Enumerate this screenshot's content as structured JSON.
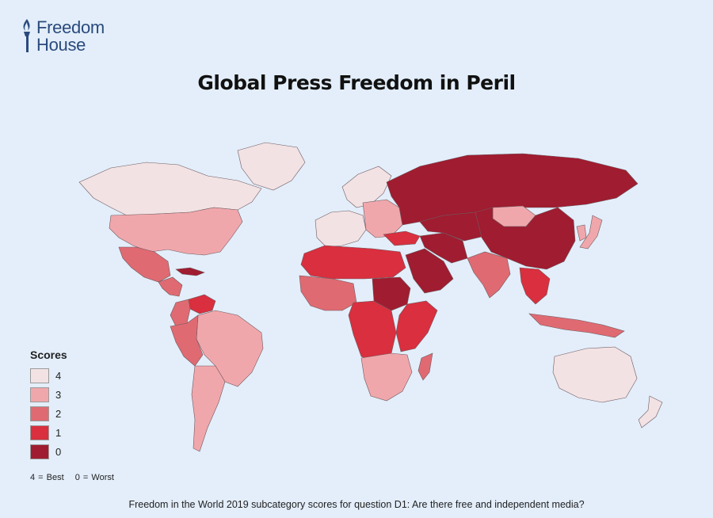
{
  "logo": {
    "line1": "Freedom",
    "line2": "House"
  },
  "title": "Global Press Freedom in Peril",
  "legend": {
    "title": "Scores",
    "items": [
      {
        "label": "4",
        "color": "#f2e2e4"
      },
      {
        "label": "3",
        "color": "#f0a7ab"
      },
      {
        "label": "2",
        "color": "#e06a72"
      },
      {
        "label": "1",
        "color": "#d92f3e"
      },
      {
        "label": "0",
        "color": "#a01c30"
      }
    ]
  },
  "scale_note": {
    "best": "4 = Best",
    "worst": "0 = Worst"
  },
  "footer": "Freedom in the World 2019 subcategory scores for question D1: Are there free and independent media?",
  "map": {
    "ocean_color": "#e3eefa",
    "regions": [
      {
        "name": "Canada",
        "score": 4
      },
      {
        "name": "Greenland",
        "score": 4
      },
      {
        "name": "United States",
        "score": 3
      },
      {
        "name": "Mexico",
        "score": 2
      },
      {
        "name": "Central America",
        "score": 2
      },
      {
        "name": "Cuba",
        "score": 0
      },
      {
        "name": "Venezuela",
        "score": 1
      },
      {
        "name": "Colombia",
        "score": 2
      },
      {
        "name": "Brazil",
        "score": 3
      },
      {
        "name": "Andean South America",
        "score": 2
      },
      {
        "name": "Southern Cone",
        "score": 3
      },
      {
        "name": "Western Europe",
        "score": 4
      },
      {
        "name": "Scandinavia",
        "score": 4
      },
      {
        "name": "Eastern Europe",
        "score": 3
      },
      {
        "name": "Russia",
        "score": 0
      },
      {
        "name": "Turkey",
        "score": 1
      },
      {
        "name": "North Africa",
        "score": 1
      },
      {
        "name": "West Africa",
        "score": 2
      },
      {
        "name": "Central Africa",
        "score": 1
      },
      {
        "name": "Sudan",
        "score": 0
      },
      {
        "name": "East Africa",
        "score": 1
      },
      {
        "name": "Southern Africa",
        "score": 3
      },
      {
        "name": "Madagascar",
        "score": 2
      },
      {
        "name": "Arabian Peninsula",
        "score": 0
      },
      {
        "name": "Iran",
        "score": 0
      },
      {
        "name": "Central Asia",
        "score": 0
      },
      {
        "name": "Mongolia",
        "score": 3
      },
      {
        "name": "China",
        "score": 0
      },
      {
        "name": "India",
        "score": 2
      },
      {
        "name": "Southeast Asia",
        "score": 1
      },
      {
        "name": "Japan",
        "score": 3
      },
      {
        "name": "Korea",
        "score": 3
      },
      {
        "name": "Indonesia",
        "score": 2
      },
      {
        "name": "Australia",
        "score": 4
      },
      {
        "name": "New Zealand",
        "score": 4
      }
    ]
  }
}
